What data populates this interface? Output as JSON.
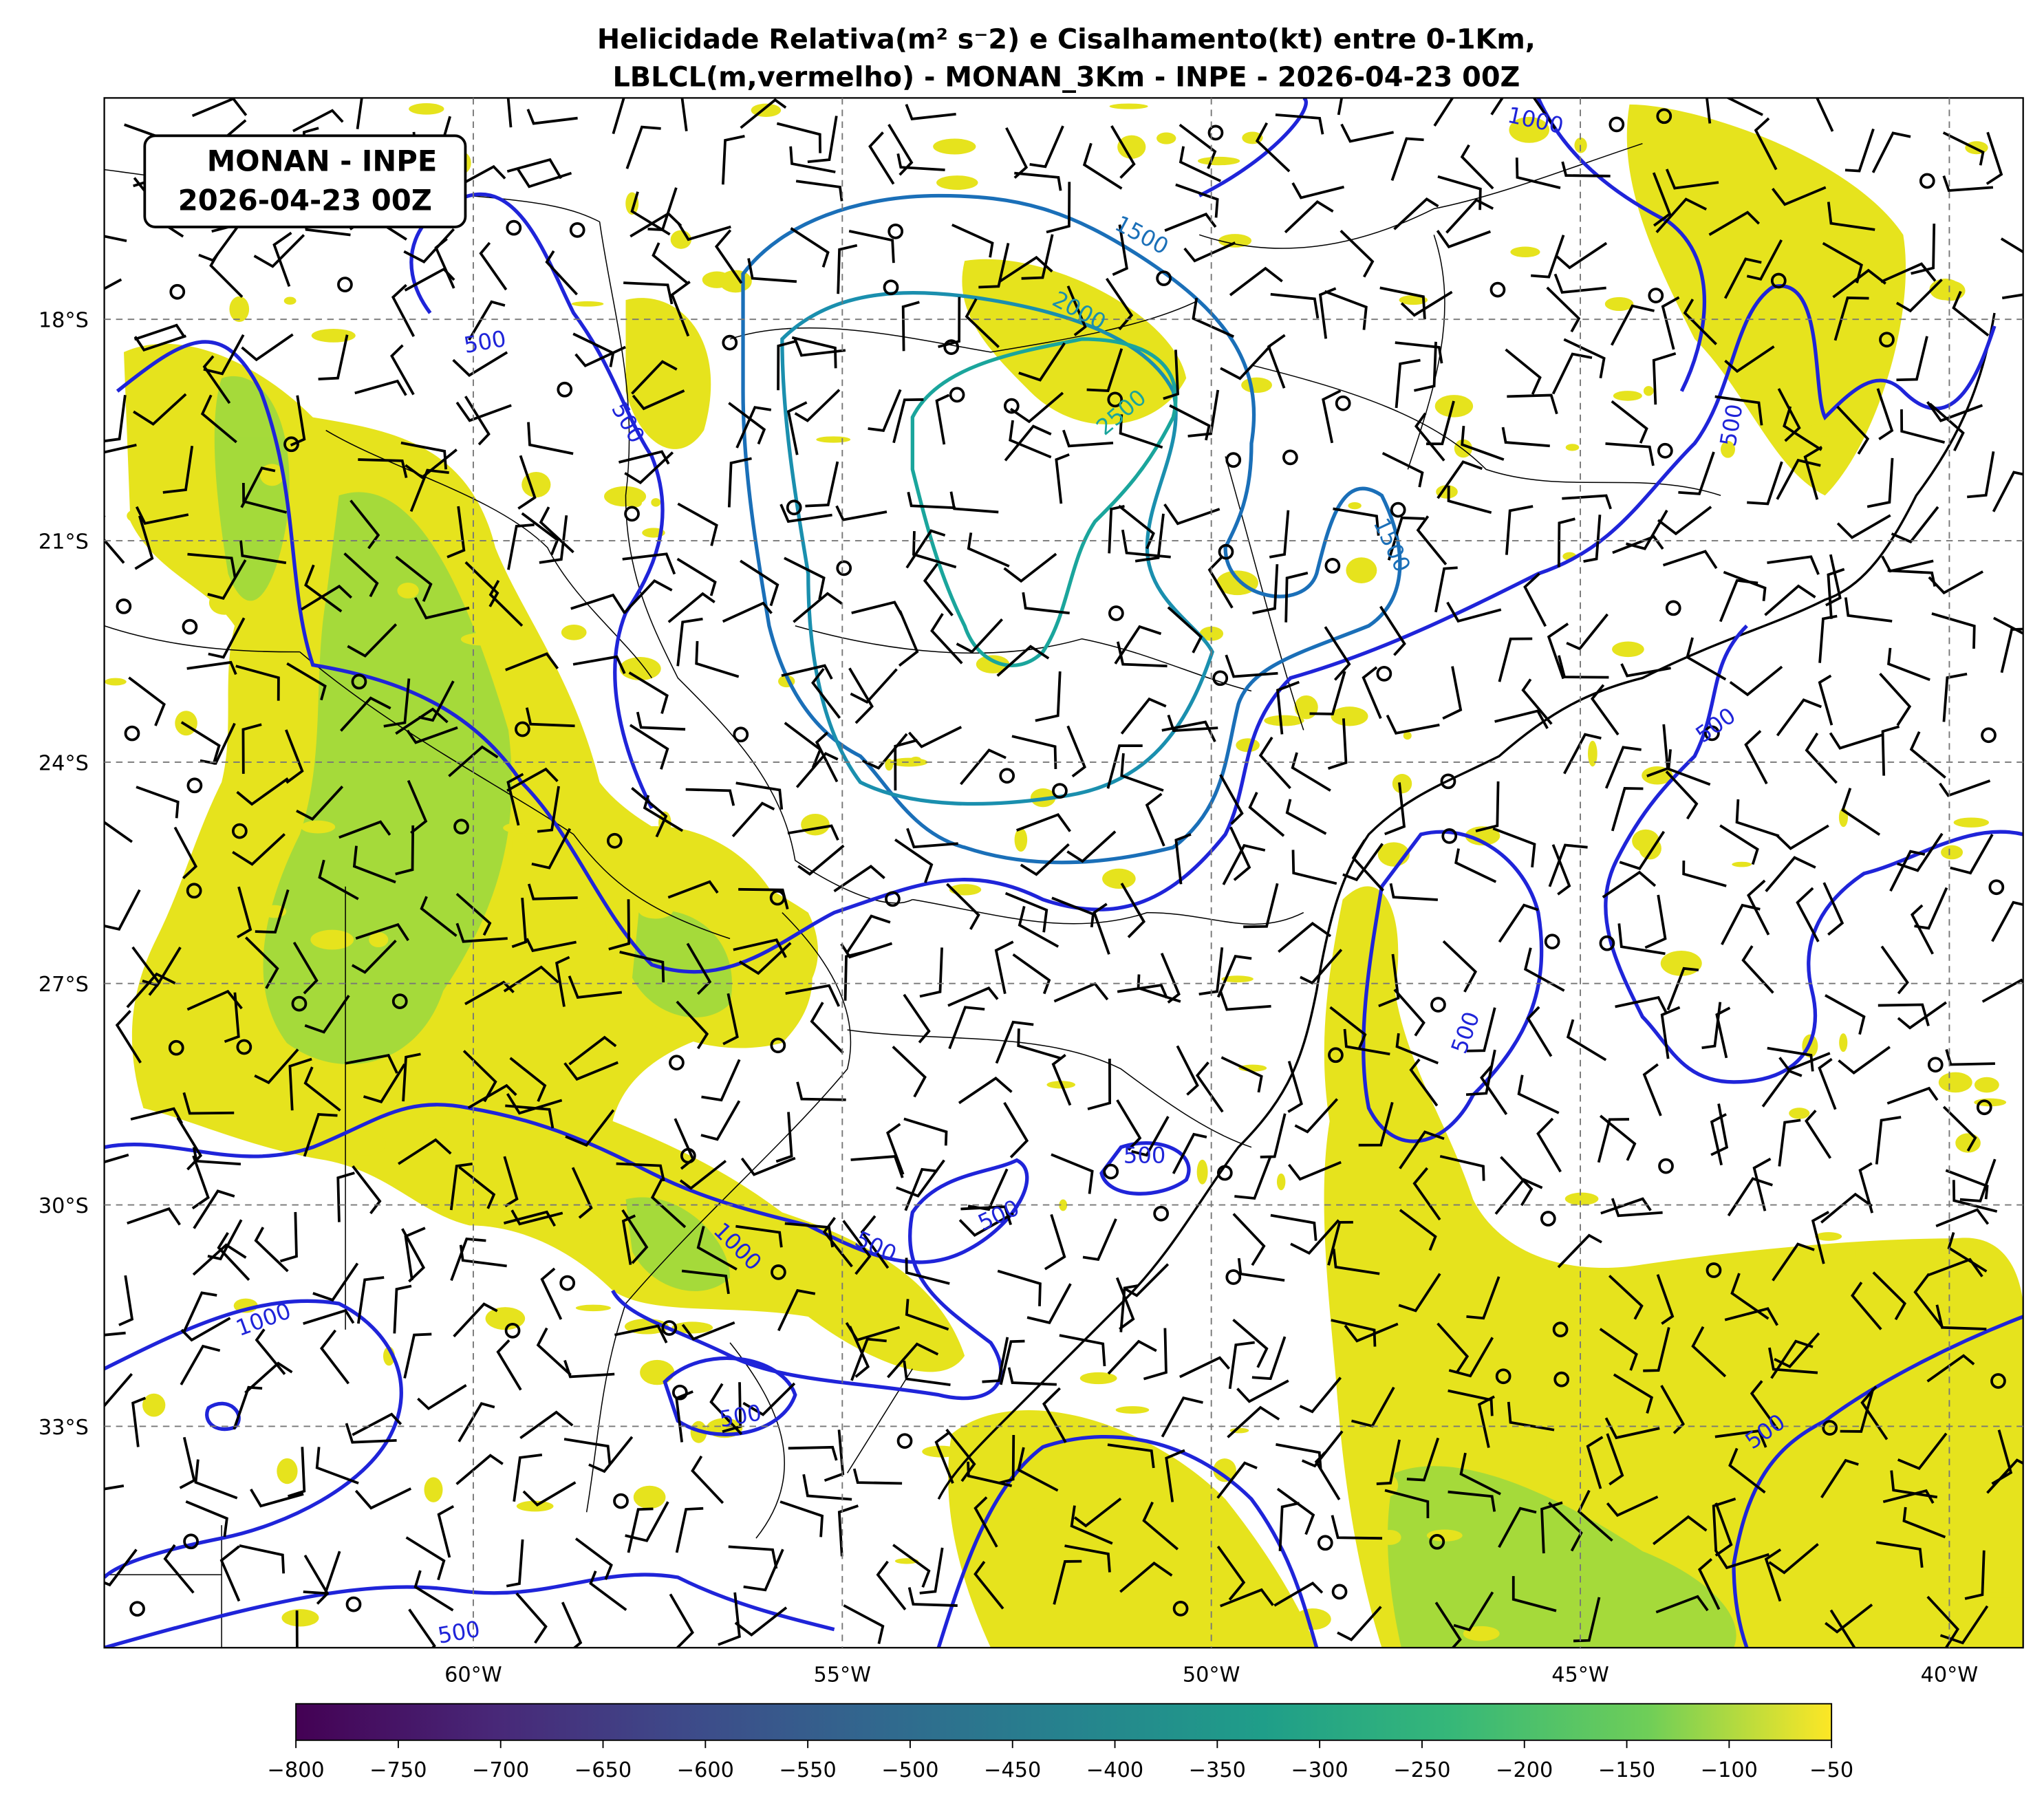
{
  "title": [
    "Helicidade Relativa(m² s⁻2) e Cisalhamento(kt) entre 0-1Km,",
    "LBLCL(m,vermelho) - MONAN_3Km - INPE - 2026-04-23 00Z"
  ],
  "info_box": [
    "MONAN - INPE",
    "2026-04-23 00Z"
  ],
  "map": {
    "xlim": [
      -65,
      -39
    ],
    "ylim": [
      -36,
      -15
    ],
    "grid": true,
    "xticks": [
      {
        "value": -60,
        "label": "60°W"
      },
      {
        "value": -55,
        "label": "55°W"
      },
      {
        "value": -50,
        "label": "50°W"
      },
      {
        "value": -45,
        "label": "45°W"
      },
      {
        "value": -40,
        "label": "40°W"
      }
    ],
    "yticks": [
      {
        "value": -18,
        "label": "18°S"
      },
      {
        "value": -21,
        "label": "21°S"
      },
      {
        "value": -24,
        "label": "24°S"
      },
      {
        "value": -27,
        "label": "27°S"
      },
      {
        "value": -30,
        "label": "30°S"
      },
      {
        "value": -33,
        "label": "33°S"
      }
    ]
  },
  "colorbar": {
    "lim": [
      -800,
      -50
    ],
    "ticks": [
      {
        "value": -800,
        "label": "−800"
      },
      {
        "value": -750,
        "label": "−750"
      },
      {
        "value": -700,
        "label": "−700"
      },
      {
        "value": -650,
        "label": "−650"
      },
      {
        "value": -600,
        "label": "−600"
      },
      {
        "value": -550,
        "label": "−550"
      },
      {
        "value": -500,
        "label": "−500"
      },
      {
        "value": -450,
        "label": "−450"
      },
      {
        "value": -400,
        "label": "−400"
      },
      {
        "value": -350,
        "label": "−350"
      },
      {
        "value": -300,
        "label": "−300"
      },
      {
        "value": -250,
        "label": "−250"
      },
      {
        "value": -200,
        "label": "−200"
      },
      {
        "value": -150,
        "label": "−150"
      },
      {
        "value": -100,
        "label": "−100"
      },
      {
        "value": -50,
        "label": "−50"
      }
    ]
  },
  "contour_labels": [
    1000,
    1500,
    2000,
    2500,
    500,
    500,
    1500,
    500,
    500,
    500,
    500,
    500,
    1000,
    1000,
    500,
    500,
    500,
    500
  ]
}
